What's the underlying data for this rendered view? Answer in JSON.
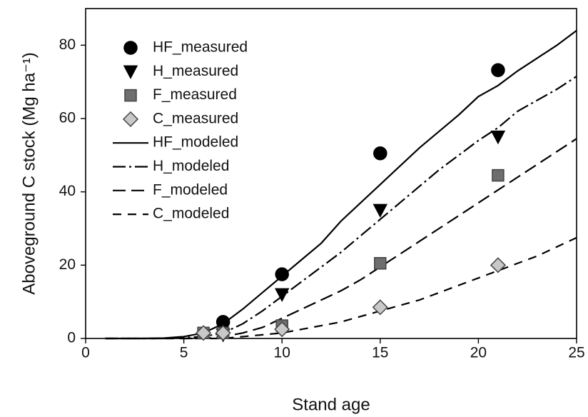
{
  "chart_data": {
    "type": "line",
    "xlabel": "Stand age",
    "ylabel": "Aboveground C stock (Mg ha⁻¹)",
    "xlim": [
      0,
      25
    ],
    "xticks": [
      0,
      5,
      10,
      15,
      20,
      25
    ],
    "ylim": [
      0,
      90
    ],
    "yticks": [
      0,
      20,
      40,
      60,
      80
    ],
    "legend": "upper left",
    "series": [
      {
        "name": "HF_measured",
        "color": "#000000",
        "marker": "circle",
        "x": [
          7,
          10,
          15,
          21
        ],
        "values": [
          4.5,
          17.5,
          50.5,
          73.2
        ]
      },
      {
        "name": "H_measured",
        "color": "#000000",
        "marker": "triangle-down",
        "x": [
          7,
          10,
          15,
          21
        ],
        "values": [
          1,
          12,
          35,
          55
        ]
      },
      {
        "name": "F_measured",
        "color": "#6e6e6e",
        "marker": "square",
        "x": [
          6,
          7,
          10,
          15,
          21
        ],
        "values": [
          1.5,
          1.5,
          3.5,
          20.5,
          44.5
        ]
      },
      {
        "name": "C_measured",
        "color": "#c8c8c8",
        "marker": "diamond",
        "x": [
          6,
          7,
          10,
          15,
          21
        ],
        "values": [
          1.5,
          1.5,
          2.5,
          8.5,
          20
        ]
      },
      {
        "name": "HF_modeled",
        "color": "#000000",
        "dash": "none",
        "x": [
          1,
          2,
          3,
          4,
          5,
          6,
          7,
          8,
          9,
          10,
          11,
          12,
          13,
          14,
          15,
          16,
          17,
          18,
          19,
          20,
          21,
          22,
          23,
          24,
          25
        ],
        "values": [
          0,
          0,
          0,
          0.1,
          0.5,
          1.5,
          4,
          8,
          12.5,
          17,
          21.5,
          26,
          32,
          37,
          42,
          47,
          52,
          56.5,
          61,
          66,
          69,
          73,
          76.5,
          80,
          84
        ]
      },
      {
        "name": "H_modeled",
        "color": "#000000",
        "dash": "18 5 3 5",
        "x": [
          1,
          2,
          3,
          4,
          5,
          6,
          7,
          8,
          9,
          10,
          11,
          12,
          13,
          14,
          15,
          16,
          17,
          18,
          19,
          20,
          21,
          22,
          23,
          24,
          25
        ],
        "values": [
          0,
          0,
          0,
          0,
          0.2,
          0.5,
          1.5,
          4,
          7.5,
          11.5,
          15.5,
          19.5,
          23.5,
          28,
          32.5,
          37,
          41.5,
          46,
          50,
          54,
          57.5,
          62,
          65,
          68,
          71.5
        ]
      },
      {
        "name": "F_modeled",
        "color": "#000000",
        "dash": "18 8",
        "x": [
          1,
          2,
          3,
          4,
          5,
          6,
          7,
          8,
          9,
          10,
          11,
          12,
          13,
          14,
          15,
          16,
          17,
          18,
          19,
          20,
          21,
          22,
          23,
          24,
          25
        ],
        "values": [
          0,
          0,
          0,
          0,
          0,
          0,
          0.5,
          1.5,
          3,
          5.5,
          8,
          10.5,
          13,
          16,
          19.5,
          23,
          26.5,
          30,
          33.5,
          37,
          40.5,
          44,
          47.5,
          51,
          54.5
        ]
      },
      {
        "name": "C_modeled",
        "color": "#000000",
        "dash": "12 9",
        "x": [
          1,
          2,
          3,
          4,
          5,
          6,
          7,
          8,
          9,
          10,
          11,
          12,
          13,
          14,
          15,
          16,
          17,
          18,
          19,
          20,
          21,
          22,
          23,
          24,
          25
        ],
        "values": [
          0,
          0,
          0,
          0,
          0,
          0,
          0,
          0.5,
          1,
          1.5,
          2.5,
          3.5,
          4.5,
          6,
          7.5,
          9,
          10.5,
          12.5,
          14.5,
          16.5,
          18.5,
          20.5,
          22.5,
          25,
          27.5
        ]
      }
    ]
  }
}
